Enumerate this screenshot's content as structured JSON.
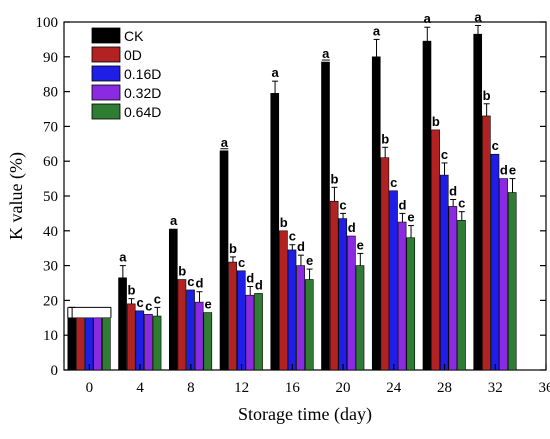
{
  "chart_data": {
    "type": "bar",
    "title": "",
    "xlabel": "Storage time (day)",
    "ylabel": "K value (%)",
    "ylim": [
      0,
      100
    ],
    "yticks": [
      0,
      10,
      20,
      30,
      40,
      50,
      60,
      70,
      80,
      90,
      100
    ],
    "xlim": [
      -2,
      36
    ],
    "xticks": [
      0,
      4,
      8,
      12,
      16,
      20,
      24,
      28,
      32,
      36
    ],
    "categories": [
      0,
      4,
      8,
      12,
      16,
      20,
      24,
      28,
      32
    ],
    "legend_position": "top-left",
    "grid": false,
    "series": [
      {
        "name": "CK",
        "color": "#000000",
        "values": [
          15,
          26.5,
          40.5,
          63,
          79.5,
          88.5,
          90,
          94.5,
          96.5
        ],
        "errors": [
          3,
          3.5,
          0,
          0,
          3.5,
          0,
          5,
          4,
          2.5
        ],
        "labels": [
          "",
          "a",
          "a",
          "a",
          "a",
          "a",
          "a",
          "a",
          "a"
        ]
      },
      {
        "name": "0D",
        "color": "#b22222",
        "values": [
          15,
          19,
          26,
          31,
          40,
          48.5,
          61,
          69,
          73
        ],
        "errors": [
          0,
          1.5,
          0,
          1.5,
          0,
          4,
          3,
          0,
          3.5
        ],
        "labels": [
          "",
          "b",
          "b",
          "b",
          "b",
          "b",
          "b",
          "b",
          "b"
        ]
      },
      {
        "name": "0.16D",
        "color": "#1e1ee6",
        "values": [
          15,
          17,
          23,
          28.5,
          34.5,
          43.5,
          51.5,
          56,
          62
        ],
        "errors": [
          0,
          0,
          0,
          0,
          1.5,
          1.5,
          0,
          3.5,
          0
        ],
        "labels": [
          "",
          "c",
          "c",
          "c",
          "c",
          "c",
          "c",
          "c",
          "c"
        ]
      },
      {
        "name": "0.32D",
        "color": "#8a2be2",
        "values": [
          15,
          16,
          19.5,
          21.5,
          30,
          38.5,
          42.5,
          47,
          55
        ],
        "errors": [
          0,
          0,
          3,
          2.5,
          3,
          0,
          2.5,
          2,
          0
        ],
        "labels": [
          "",
          "c",
          "d",
          "d",
          "d",
          "d",
          "d",
          "d",
          "d"
        ]
      },
      {
        "name": "0.64D",
        "color": "#2e7d32",
        "values": [
          15,
          15.5,
          16.5,
          22,
          26,
          30,
          38,
          43,
          51
        ],
        "errors": [
          0,
          2.5,
          0,
          0,
          3,
          3.5,
          3.5,
          2.5,
          4
        ],
        "labels": [
          "",
          "c",
          "e",
          "d",
          "e",
          "e",
          "e",
          "c",
          "e"
        ]
      }
    ]
  }
}
